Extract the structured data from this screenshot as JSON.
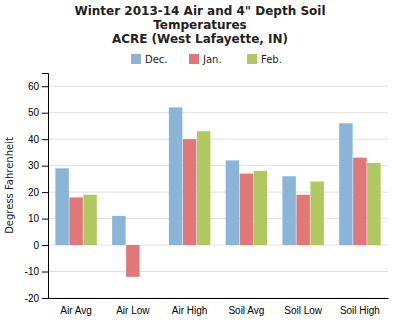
{
  "chart_data": {
    "type": "bar",
    "title": "Winter 2013-14 Air and 4\" Depth Soil\nTemperatures\nACRE (West Lafayette, IN)",
    "categories": [
      "Air Avg",
      "Air Low",
      "Air High",
      "Soil Avg",
      "Soil Low",
      "Soil High"
    ],
    "series": [
      {
        "name": "Dec.",
        "color": "#8ab4d8",
        "values": [
          29,
          11,
          52,
          32,
          26,
          46
        ]
      },
      {
        "name": "Jan.",
        "color": "#e07878",
        "values": [
          18,
          -12,
          40,
          27,
          19,
          33
        ]
      },
      {
        "name": "Feb.",
        "color": "#b0c860",
        "values": [
          19,
          0,
          43,
          28,
          24,
          31
        ]
      }
    ],
    "ylabel": "Degress Fahrenheit",
    "ylim": [
      -20,
      65
    ],
    "yticks": [
      -20,
      -10,
      0,
      10,
      20,
      30,
      40,
      50,
      60
    ],
    "grid": true,
    "legend": "top"
  }
}
